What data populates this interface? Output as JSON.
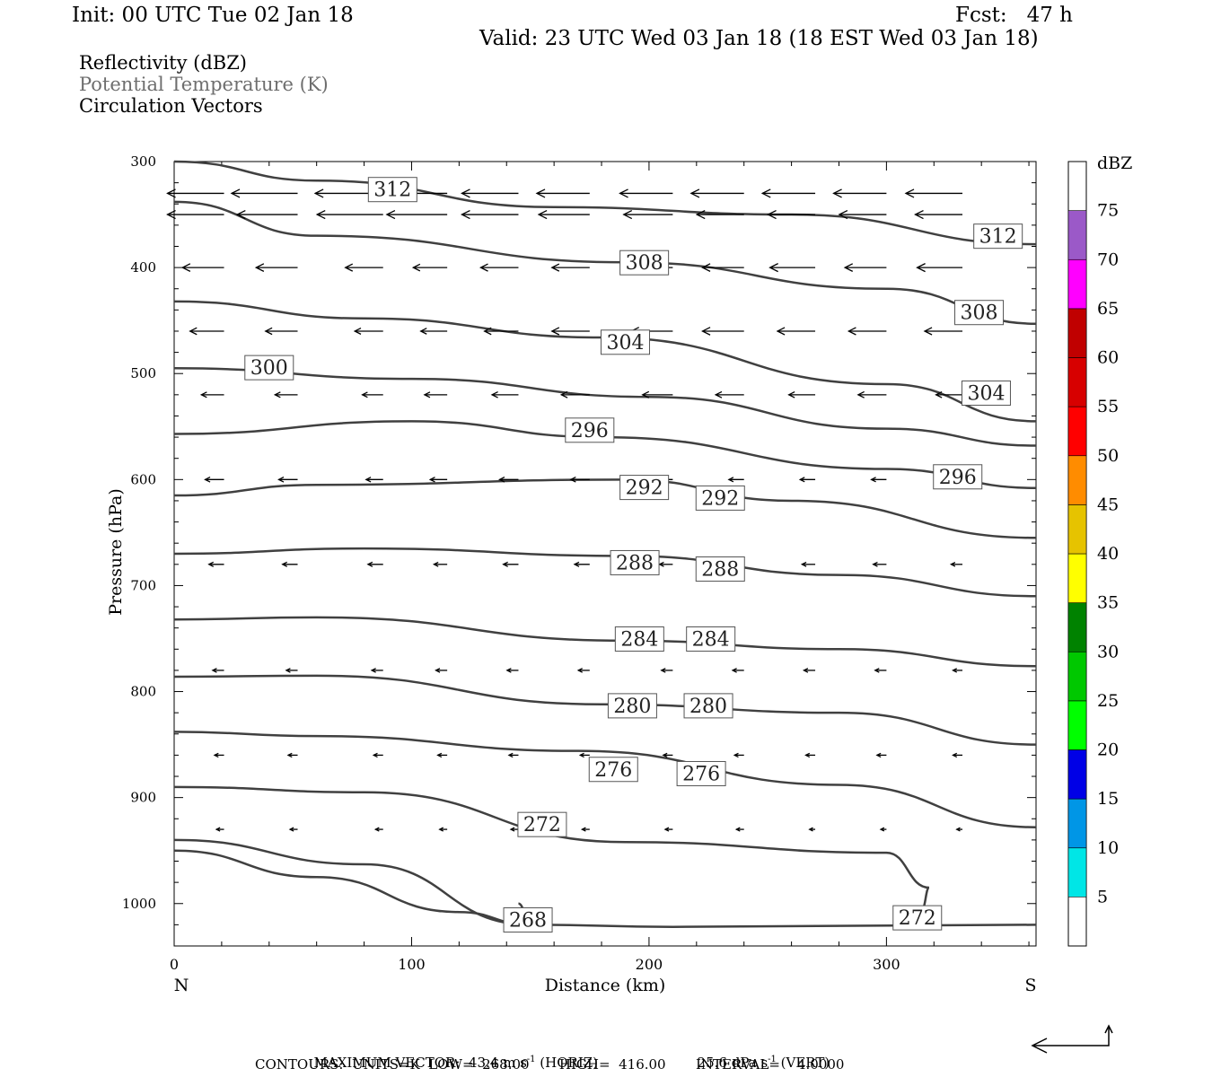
{
  "header": {
    "init": "Init: 00 UTC Tue 02 Jan 18",
    "fcst": "Fcst:   47 h",
    "valid": "Valid: 23 UTC Wed 03 Jan 18 (18 EST Wed 03 Jan 18)"
  },
  "fields": [
    "Reflectivity (dBZ)",
    "Potential Temperature (K)",
    "Circulation Vectors"
  ],
  "footer": {
    "max_vector": "MAXIMUM VECTOR:  43.4 m s",
    "max_vector_exp": "-1",
    "max_vector_horiz": " (HORIZ)",
    "vert": "25.6 dPa s",
    "vert_exp": "-1",
    "vert_suffix": " (VERT)",
    "contours": "CONTOURS:  UNITS=K  LOW=  268.00       HIGH=  416.00       INTERVAL=    4.0000"
  },
  "colorbar": {
    "title": "dBZ",
    "bins": [
      {
        "label": "5",
        "color": "#00e6e6"
      },
      {
        "label": "10",
        "color": "#0096e6"
      },
      {
        "label": "15",
        "color": "#0000e6"
      },
      {
        "label": "20",
        "color": "#00ff00"
      },
      {
        "label": "25",
        "color": "#00c800"
      },
      {
        "label": "30",
        "color": "#008200"
      },
      {
        "label": "35",
        "color": "#ffff00"
      },
      {
        "label": "40",
        "color": "#e6c300"
      },
      {
        "label": "45",
        "color": "#ff8c00"
      },
      {
        "label": "50",
        "color": "#ff0000"
      },
      {
        "label": "55",
        "color": "#d70000"
      },
      {
        "label": "60",
        "color": "#c00000"
      },
      {
        "label": "65",
        "color": "#ff00ff"
      },
      {
        "label": "70",
        "color": "#9b59c8"
      },
      {
        "label": "75",
        "color": ""
      }
    ]
  },
  "chart_data": {
    "type": "line",
    "xlabel": "Distance (km)",
    "ylabel": "Pressure (hPa)",
    "xlim": [
      0,
      363
    ],
    "ylim": [
      1040,
      300
    ],
    "xticks": [
      "0",
      "100",
      "200",
      "300"
    ],
    "yticks": [
      "300",
      "400",
      "500",
      "600",
      "700",
      "800",
      "900",
      "1000"
    ],
    "x_end_labels": {
      "left": "N",
      "right": "S"
    },
    "contour_color": "#404040",
    "series": [
      {
        "name": "312",
        "x": [
          0,
          60,
          160,
          260,
          363
        ],
        "y": [
          300,
          318,
          343,
          350,
          378
        ]
      },
      {
        "name": "308",
        "x": [
          0,
          60,
          190,
          300,
          363
        ],
        "y": [
          338,
          370,
          395,
          420,
          453
        ]
      },
      {
        "name": "304",
        "x": [
          0,
          80,
          180,
          300,
          363
        ],
        "y": [
          432,
          448,
          466,
          510,
          545
        ]
      },
      {
        "name": "300",
        "x": [
          0,
          100,
          200,
          300,
          363
        ],
        "y": [
          495,
          505,
          522,
          552,
          568
        ]
      },
      {
        "name": "296",
        "x": [
          0,
          100,
          180,
          300,
          363
        ],
        "y": [
          557,
          545,
          560,
          590,
          608
        ]
      },
      {
        "name": "292",
        "x": [
          0,
          60,
          190,
          260,
          363
        ],
        "y": [
          615,
          605,
          600,
          620,
          655
        ]
      },
      {
        "name": "288",
        "x": [
          0,
          80,
          190,
          280,
          363
        ],
        "y": [
          670,
          665,
          672,
          690,
          710
        ]
      },
      {
        "name": "284",
        "x": [
          0,
          60,
          190,
          280,
          363
        ],
        "y": [
          732,
          730,
          752,
          760,
          776
        ]
      },
      {
        "name": "280",
        "x": [
          0,
          60,
          180,
          280,
          363
        ],
        "y": [
          786,
          785,
          812,
          820,
          850
        ]
      },
      {
        "name": "276",
        "x": [
          0,
          60,
          170,
          280,
          363
        ],
        "y": [
          838,
          842,
          856,
          888,
          928
        ]
      },
      {
        "name": "272",
        "x": [
          0,
          80,
          190,
          300,
          318,
          315
        ],
        "y": [
          890,
          895,
          942,
          952,
          985,
          1005
        ]
      },
      {
        "name": "272",
        "x": [
          0,
          80,
          150,
          210,
          363
        ],
        "y": [
          940,
          963,
          1020,
          1022,
          1020
        ]
      },
      {
        "name": "268",
        "x": [
          0,
          60,
          120,
          150,
          145
        ],
        "y": [
          950,
          975,
          1008,
          1020,
          1000
        ]
      }
    ],
    "contour_labels": [
      {
        "text": "312",
        "x": 92,
        "y": 326
      },
      {
        "text": "312",
        "x": 347,
        "y": 370
      },
      {
        "text": "308",
        "x": 198,
        "y": 395
      },
      {
        "text": "308",
        "x": 339,
        "y": 442
      },
      {
        "text": "304",
        "x": 190,
        "y": 470
      },
      {
        "text": "304",
        "x": 342,
        "y": 518
      },
      {
        "text": "300",
        "x": 40,
        "y": 494
      },
      {
        "text": "296",
        "x": 175,
        "y": 553
      },
      {
        "text": "296",
        "x": 330,
        "y": 597
      },
      {
        "text": "292",
        "x": 198,
        "y": 607
      },
      {
        "text": "292",
        "x": 230,
        "y": 617
      },
      {
        "text": "288",
        "x": 194,
        "y": 678
      },
      {
        "text": "288",
        "x": 230,
        "y": 684
      },
      {
        "text": "284",
        "x": 196,
        "y": 750
      },
      {
        "text": "284",
        "x": 226,
        "y": 750
      },
      {
        "text": "280",
        "x": 193,
        "y": 813
      },
      {
        "text": "280",
        "x": 225,
        "y": 813
      },
      {
        "text": "276",
        "x": 185,
        "y": 873
      },
      {
        "text": "276",
        "x": 222,
        "y": 877
      },
      {
        "text": "272",
        "x": 155,
        "y": 925
      },
      {
        "text": "272",
        "x": 313,
        "y": 1013
      },
      {
        "text": "268",
        "x": 149,
        "y": 1015
      }
    ],
    "wind_vectors": {
      "x_positions": [
        21,
        52,
        88,
        115,
        145,
        175,
        210,
        240,
        270,
        300,
        332
      ],
      "rows": [
        {
          "p": 330,
          "u": [
            -30,
            -35,
            -36,
            -32,
            -30,
            -28,
            -28,
            -28,
            -28,
            -28,
            -30
          ]
        },
        {
          "p": 350,
          "u": [
            -30,
            -32,
            -35,
            -32,
            -30,
            -27,
            -26,
            -25,
            -25,
            -25,
            -25
          ]
        },
        {
          "p": 400,
          "u": [
            -22,
            -22,
            -20,
            -18,
            -20,
            -20,
            -22,
            -22,
            -24,
            -22,
            -24
          ]
        },
        {
          "p": 460,
          "u": [
            -18,
            -17,
            -15,
            -14,
            -18,
            -20,
            -22,
            -22,
            -20,
            -20,
            -20
          ]
        },
        {
          "p": 520,
          "u": [
            -12,
            -12,
            -11,
            -12,
            -14,
            -15,
            -16,
            -15,
            -14,
            -15,
            -14
          ]
        },
        {
          "p": 600,
          "u": [
            -10,
            -10,
            -9,
            -9,
            -10,
            -10,
            -8,
            -8,
            -8,
            -8,
            -8
          ]
        },
        {
          "p": 680,
          "u": [
            -8,
            -8,
            -8,
            -7,
            -8,
            -8,
            -7,
            -7,
            -7,
            -7,
            -6
          ]
        },
        {
          "p": 780,
          "u": [
            -6,
            -6,
            -6,
            -6,
            -6,
            -6,
            -6,
            -6,
            -6,
            -6,
            -5
          ]
        },
        {
          "p": 860,
          "u": [
            -5,
            -5,
            -5,
            -5,
            -5,
            -5,
            -5,
            -5,
            -5,
            -5,
            -5
          ]
        },
        {
          "p": 930,
          "u": [
            -4,
            -4,
            -4,
            -4,
            -4,
            -4,
            -4,
            -4,
            -3,
            -3,
            -3
          ]
        }
      ]
    }
  }
}
